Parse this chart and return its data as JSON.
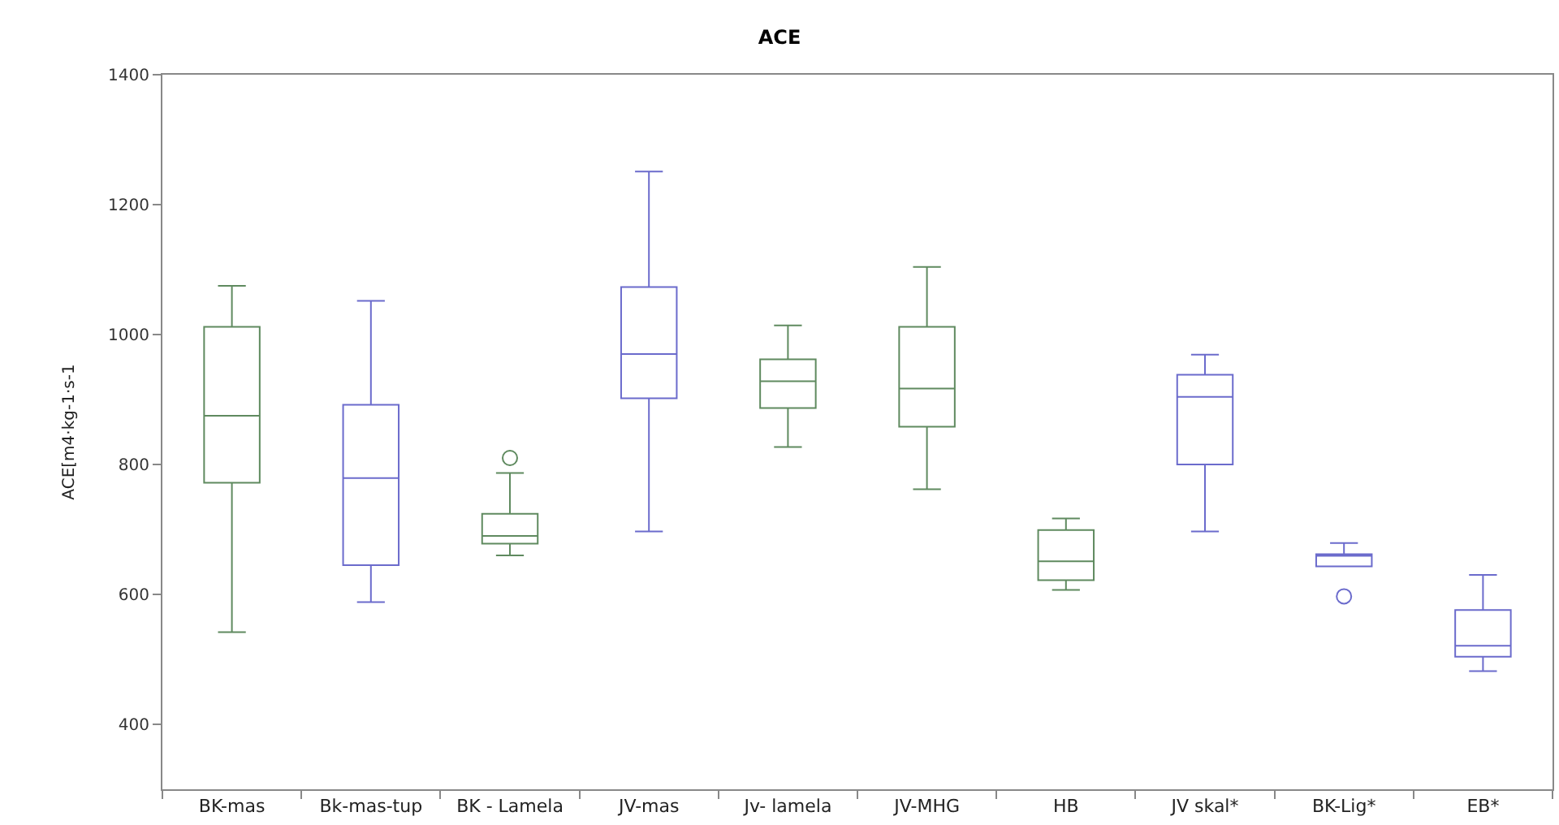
{
  "chart_data": {
    "type": "box",
    "title": "ACE",
    "ylabel": "ACE[m4·kg-1·s-1",
    "categories": [
      "BK-mas",
      "Bk-mas-tup",
      "BK - Lamela",
      "JV-mas",
      "Jv- lamela",
      "JV-MHG",
      "HB",
      "JV skal*",
      "BK-Lig*",
      "EB*"
    ],
    "colors": [
      "#5f8a5f",
      "#6b6bcc",
      "#5f8a5f",
      "#6b6bcc",
      "#5f8a5f",
      "#5f8a5f",
      "#5f8a5f",
      "#6b6bcc",
      "#6b6bcc",
      "#6b6bcc"
    ],
    "boxes": [
      {
        "low": 542,
        "q1": 772,
        "median": 875,
        "q3": 1012,
        "high": 1075
      },
      {
        "low": 588,
        "q1": 645,
        "median": 779,
        "q3": 892,
        "high": 1052
      },
      {
        "low": 660,
        "q1": 678,
        "median": 690,
        "q3": 724,
        "high": 787,
        "outliers": [
          810
        ]
      },
      {
        "low": 697,
        "q1": 902,
        "median": 970,
        "q3": 1073,
        "high": 1251
      },
      {
        "low": 827,
        "q1": 887,
        "median": 928,
        "q3": 962,
        "high": 1014
      },
      {
        "low": 762,
        "q1": 858,
        "median": 917,
        "q3": 1012,
        "high": 1104
      },
      {
        "low": 607,
        "q1": 622,
        "median": 651,
        "q3": 699,
        "high": 717
      },
      {
        "low": 697,
        "q1": 800,
        "median": 904,
        "q3": 938,
        "high": 969
      },
      {
        "low": 643,
        "q1": 643,
        "median": 662,
        "q3": 662,
        "high": 679,
        "outliers": [
          597
        ]
      },
      {
        "low": 482,
        "q1": 504,
        "median": 521,
        "q3": 576,
        "high": 630
      }
    ],
    "ylim": [
      300,
      1400
    ],
    "yticks": [
      400,
      600,
      800,
      1000,
      1200,
      1400
    ],
    "grid": false,
    "marker": "circle"
  }
}
